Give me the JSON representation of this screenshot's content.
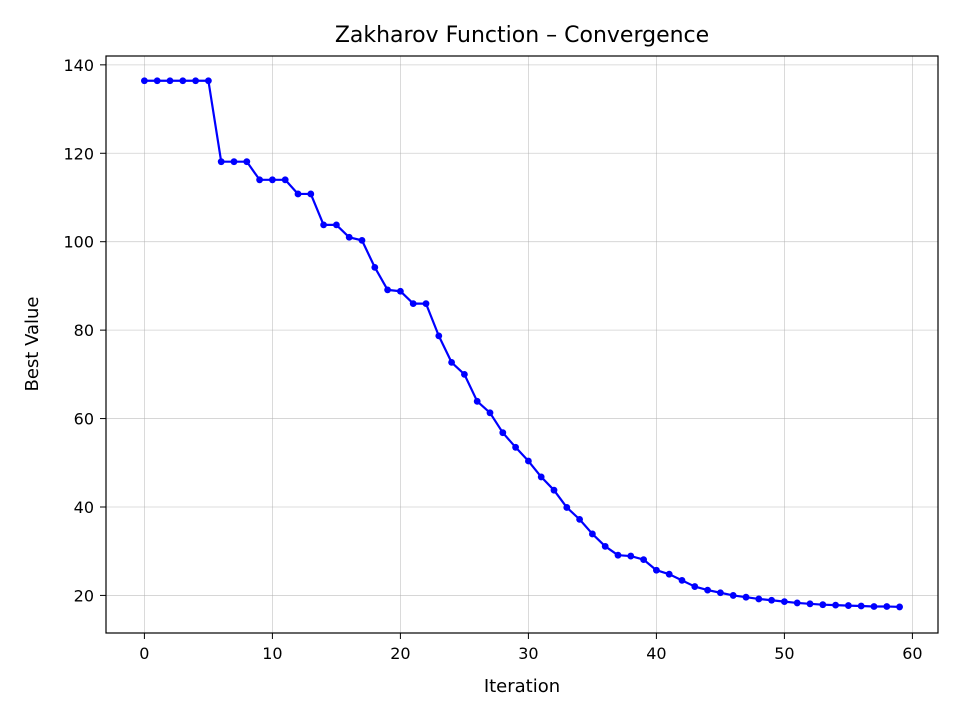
{
  "chart_data": {
    "type": "line",
    "title": "Zakharov Function – Convergence",
    "xlabel": "Iteration",
    "ylabel": "Best Value",
    "xlim": [
      -3,
      62
    ],
    "ylim": [
      11.5,
      142
    ],
    "xticks": [
      0,
      10,
      20,
      30,
      40,
      50,
      60
    ],
    "yticks": [
      20,
      40,
      60,
      80,
      100,
      120,
      140
    ],
    "grid": true,
    "legend": "none",
    "series": [
      {
        "color": "#0000ff",
        "marker": "circle",
        "x": [
          0,
          1,
          2,
          3,
          4,
          5,
          6,
          7,
          8,
          9,
          10,
          11,
          12,
          13,
          14,
          15,
          16,
          17,
          18,
          19,
          20,
          21,
          22,
          23,
          24,
          25,
          26,
          27,
          28,
          29,
          30,
          31,
          32,
          33,
          34,
          35,
          36,
          37,
          38,
          39,
          40,
          41,
          42,
          43,
          44,
          45,
          46,
          47,
          48,
          49,
          50,
          51,
          52,
          53,
          54,
          55,
          56,
          57,
          58,
          59
        ],
        "y": [
          136.4,
          136.4,
          136.4,
          136.4,
          136.4,
          136.4,
          118.1,
          118.1,
          118.1,
          114.0,
          114.0,
          114.0,
          110.8,
          110.8,
          103.8,
          103.8,
          101.0,
          100.3,
          94.2,
          89.1,
          88.8,
          86.0,
          86.0,
          78.7,
          72.7,
          70.0,
          63.9,
          61.3,
          56.8,
          53.5,
          50.4,
          46.8,
          43.8,
          39.9,
          37.2,
          33.9,
          31.1,
          29.1,
          28.9,
          28.1,
          25.7,
          24.8,
          23.4,
          22.0,
          21.2,
          20.6,
          20.0,
          19.6,
          19.2,
          18.9,
          18.6,
          18.3,
          18.1,
          17.9,
          17.8,
          17.7,
          17.6,
          17.5,
          17.5,
          17.4
        ]
      }
    ]
  }
}
